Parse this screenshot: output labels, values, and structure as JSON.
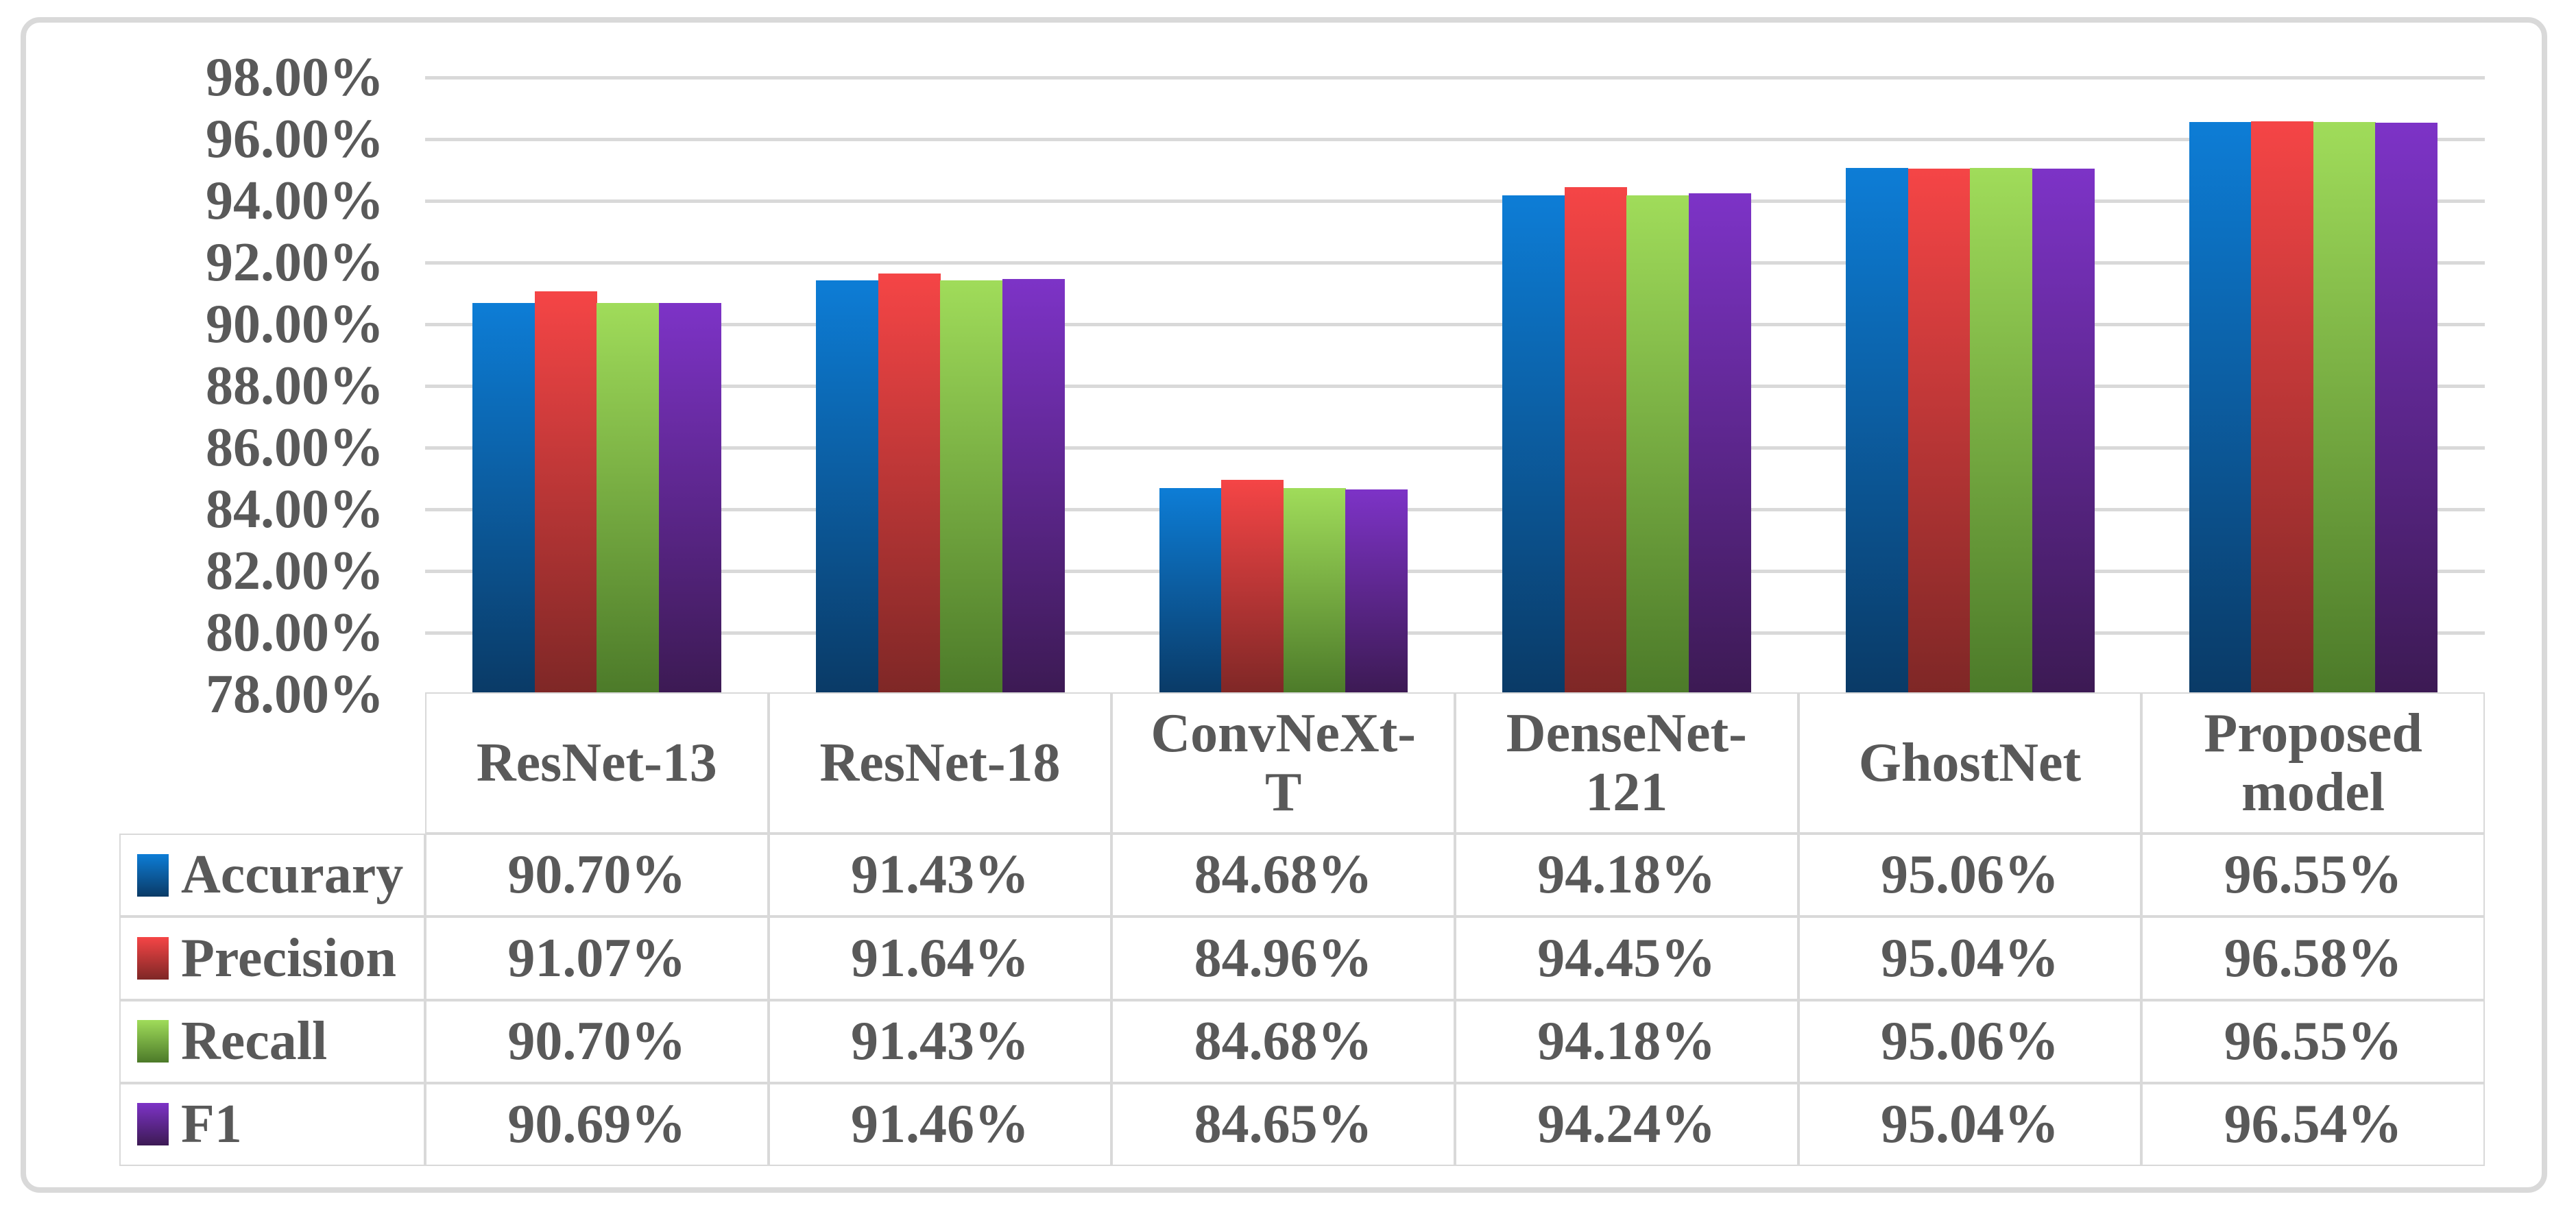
{
  "chart_data": {
    "type": "bar",
    "title": "",
    "xlabel": "",
    "ylabel": "",
    "categories": [
      "ResNet-13",
      "ResNet-18",
      "ConvNeXt-T",
      "DenseNet-121",
      "GhostNet",
      "Proposed model"
    ],
    "series": [
      {
        "name": "Accurary",
        "color_top": "#0d7dd6",
        "color_bottom": "#0a3a66",
        "values": [
          90.7,
          91.43,
          84.68,
          94.18,
          95.06,
          96.55
        ]
      },
      {
        "name": "Precision",
        "color_top": "#f54546",
        "color_bottom": "#7e2726",
        "values": [
          91.07,
          91.64,
          84.96,
          94.45,
          95.04,
          96.58
        ]
      },
      {
        "name": "Recall",
        "color_top": "#a0dc5a",
        "color_bottom": "#4c7a29",
        "values": [
          90.7,
          91.43,
          84.68,
          94.18,
          95.06,
          96.55
        ]
      },
      {
        "name": "F1",
        "color_top": "#7d33c7",
        "color_bottom": "#3c1a53",
        "values": [
          90.69,
          91.46,
          84.65,
          94.24,
          95.04,
          96.54
        ]
      }
    ],
    "ylim": [
      78,
      98
    ],
    "ytick_step": 2,
    "yticks": [
      "98.00%",
      "96.00%",
      "94.00%",
      "92.00%",
      "90.00%",
      "88.00%",
      "86.00%",
      "84.00%",
      "82.00%",
      "80.00%",
      "78.00%"
    ],
    "grid": true,
    "legend_position": "table-row-labels"
  },
  "table": {
    "corner_label": "",
    "header_columns": [
      [
        "ResNet-13"
      ],
      [
        "ResNet-18"
      ],
      [
        "ConvNeXt-",
        "T"
      ],
      [
        "DenseNet-",
        "121"
      ],
      [
        "GhostNet"
      ],
      [
        "Proposed",
        "model"
      ]
    ],
    "rows": [
      {
        "label": "Accurary",
        "values": [
          "90.70%",
          "91.43%",
          "84.68%",
          "94.18%",
          "95.06%",
          "96.55%"
        ]
      },
      {
        "label": "Precision",
        "values": [
          "91.07%",
          "91.64%",
          "84.96%",
          "94.45%",
          "95.04%",
          "96.58%"
        ]
      },
      {
        "label": "Recall",
        "values": [
          "90.70%",
          "91.43%",
          "84.68%",
          "94.18%",
          "95.06%",
          "96.55%"
        ]
      },
      {
        "label": "F1",
        "values": [
          "90.69%",
          "91.46%",
          "84.65%",
          "94.24%",
          "95.04%",
          "96.54%"
        ]
      }
    ]
  },
  "colors": {
    "text": "#595959",
    "gridline": "#d9d9d9",
    "table_border": "#d9d9d9",
    "frame_border": "#d9d9d9",
    "background": "#ffffff"
  }
}
